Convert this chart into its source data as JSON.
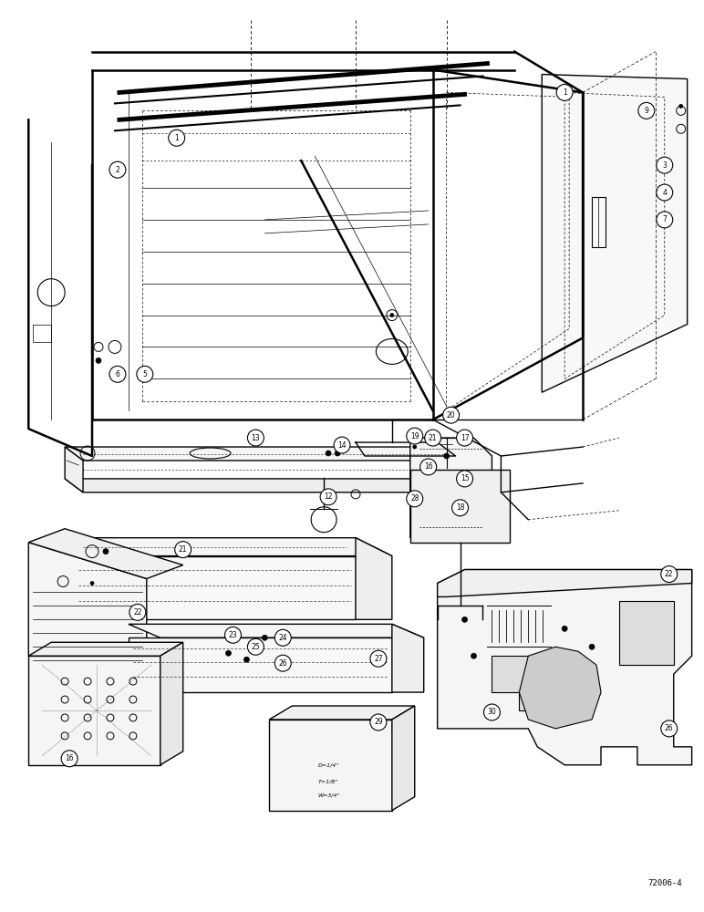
{
  "background_color": "#ffffff",
  "line_color": "#000000",
  "figure_number": "72006-4",
  "lw_main": 1.0,
  "lw_thin": 0.5,
  "lw_thick": 1.8
}
